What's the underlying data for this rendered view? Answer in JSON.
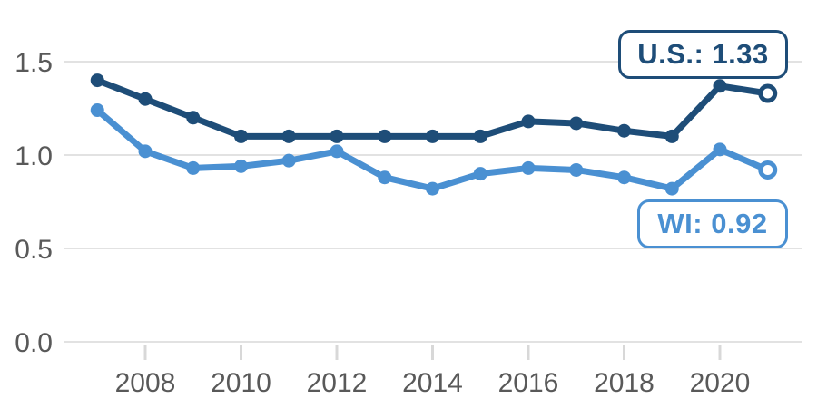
{
  "chart": {
    "annotations": {
      "us": {
        "text": "U.S.: 1.33"
      },
      "wi": {
        "text": "WI: 0.92"
      }
    }
  },
  "chart_data": {
    "type": "line",
    "x": [
      2007,
      2008,
      2009,
      2010,
      2011,
      2012,
      2013,
      2014,
      2015,
      2016,
      2017,
      2018,
      2019,
      2020,
      2021
    ],
    "series": [
      {
        "name": "U.S.",
        "color": "#1e4d78",
        "values": [
          1.4,
          1.3,
          1.2,
          1.1,
          1.1,
          1.1,
          1.1,
          1.1,
          1.1,
          1.18,
          1.17,
          1.13,
          1.1,
          1.37,
          1.33
        ],
        "end_label": "U.S.: 1.33",
        "end_value": 1.33
      },
      {
        "name": "WI",
        "color": "#4a90d2",
        "values": [
          1.24,
          1.02,
          0.93,
          0.94,
          0.97,
          1.02,
          0.88,
          0.82,
          0.9,
          0.93,
          0.92,
          0.88,
          0.82,
          1.03,
          0.92
        ],
        "end_label": "WI: 0.92",
        "end_value": 0.92
      }
    ],
    "title": "",
    "xlabel": "",
    "ylabel": "",
    "xticks": [
      2008,
      2010,
      2012,
      2014,
      2016,
      2018,
      2020
    ],
    "yticks": [
      1.5,
      1.0,
      0.5,
      0.0
    ],
    "ytick_labels": [
      "1.5",
      "1.0",
      "0.5",
      "0.0"
    ],
    "ylim": [
      0.0,
      1.6
    ],
    "xlim": [
      2006.5,
      2021.8
    ],
    "grid": true,
    "legend_position": "inline-callouts",
    "marker_style": "filled-circle, last point open-circle",
    "colors": {
      "gridline": "#e2e2e2",
      "x_tick_mark": "#d8d8d8",
      "axis_text": "#595959",
      "background": "#ffffff"
    }
  }
}
